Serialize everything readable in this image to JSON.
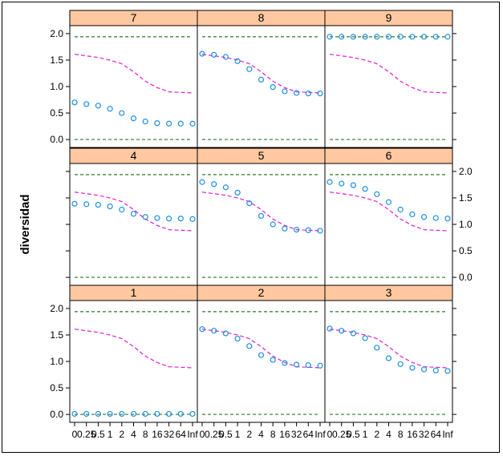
{
  "chart_data": {
    "type": "scatter",
    "title": "",
    "xlabel": "",
    "ylabel": "diversidad",
    "ylim": [
      -0.15,
      2.15
    ],
    "yticks": [
      "0.0",
      "0.5",
      "1.0",
      "1.5",
      "2.0"
    ],
    "x_categories": [
      "0",
      "0.25",
      "0.5",
      "1",
      "2",
      "4",
      "8",
      "16",
      "32",
      "64",
      "Inf"
    ],
    "colors": {
      "strip": "#ffc8a0",
      "points": "#1f8fe0",
      "reference_curve": "#e020d0",
      "bounds": "#2a7a2a"
    },
    "reference_bounds": [
      0.0,
      1.94
    ],
    "reference_curve": [
      1.61,
      1.58,
      1.55,
      1.5,
      1.43,
      1.28,
      1.1,
      0.98,
      0.9,
      0.89,
      0.88
    ],
    "panels": [
      {
        "label": "7",
        "values": [
          0.7,
          0.67,
          0.64,
          0.58,
          0.5,
          0.4,
          0.34,
          0.31,
          0.3,
          0.3,
          0.3
        ]
      },
      {
        "label": "8",
        "values": [
          1.62,
          1.6,
          1.56,
          1.48,
          1.33,
          1.13,
          0.99,
          0.91,
          0.88,
          0.87,
          0.87
        ]
      },
      {
        "label": "9",
        "values": [
          1.94,
          1.94,
          1.94,
          1.94,
          1.94,
          1.94,
          1.94,
          1.94,
          1.94,
          1.94,
          1.94
        ]
      },
      {
        "label": "4",
        "values": [
          1.39,
          1.38,
          1.37,
          1.34,
          1.28,
          1.2,
          1.14,
          1.12,
          1.11,
          1.11,
          1.1
        ]
      },
      {
        "label": "5",
        "values": [
          1.8,
          1.76,
          1.7,
          1.6,
          1.4,
          1.16,
          1.0,
          0.92,
          0.9,
          0.89,
          0.88
        ]
      },
      {
        "label": "6",
        "values": [
          1.8,
          1.77,
          1.74,
          1.67,
          1.57,
          1.42,
          1.28,
          1.19,
          1.14,
          1.12,
          1.11
        ]
      },
      {
        "label": "1",
        "values": [
          0.01,
          0.01,
          0.01,
          0.01,
          0.01,
          0.01,
          0.01,
          0.01,
          0.01,
          0.01,
          0.01
        ]
      },
      {
        "label": "2",
        "values": [
          1.61,
          1.58,
          1.53,
          1.43,
          1.29,
          1.12,
          1.03,
          0.97,
          0.94,
          0.93,
          0.92
        ]
      },
      {
        "label": "3",
        "values": [
          1.62,
          1.58,
          1.53,
          1.44,
          1.26,
          1.06,
          0.95,
          0.88,
          0.85,
          0.83,
          0.82
        ]
      }
    ]
  }
}
